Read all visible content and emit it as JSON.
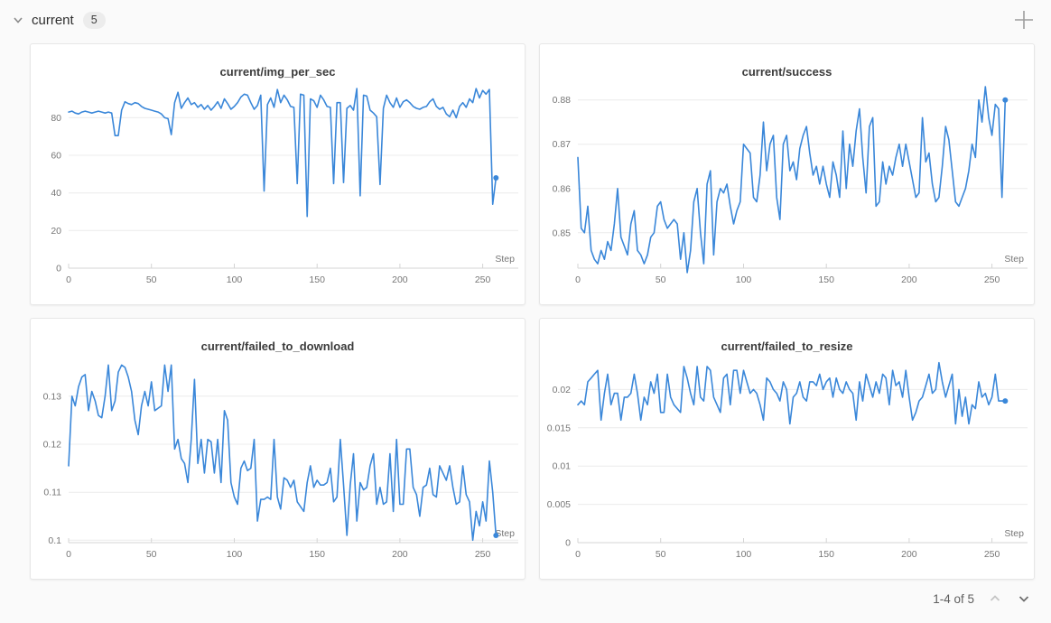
{
  "header": {
    "title": "current",
    "count": "5",
    "collapse_icon": "chevron-down-icon",
    "add_icon": "plus-icon"
  },
  "pagination": {
    "label": "1-4 of 5",
    "up_icon": "chevron-up-icon",
    "down_icon": "chevron-down-icon"
  },
  "colors": {
    "line": "#3a87d9",
    "grid": "#ececec",
    "axis": "#d4d4d4",
    "tick_text": "#767676",
    "panel_bg": "#ffffff",
    "page_bg": "#fafafa"
  },
  "chart_data": [
    {
      "type": "line",
      "title": "current/img_per_sec",
      "xlabel": "Step",
      "x_start": 0,
      "x_step": 2,
      "xticks": [
        0,
        50,
        100,
        150,
        200,
        250
      ],
      "xlim": [
        0,
        266
      ],
      "ylim": [
        0,
        96.5
      ],
      "yticks": [
        0,
        20,
        40,
        60,
        80
      ],
      "ytick_labels": [
        "0",
        "20",
        "40",
        "60",
        "80"
      ],
      "grid": true,
      "legend": "none",
      "endpoint_dot": true,
      "y": [
        83,
        83.5,
        82.5,
        82,
        83,
        83.5,
        83,
        82.5,
        83,
        83.5,
        83,
        82.5,
        83,
        82.5,
        70.5,
        70.5,
        84,
        88.5,
        87.5,
        87,
        88,
        87.5,
        86,
        85,
        84.5,
        84,
        83.5,
        83,
        82,
        80,
        79.5,
        71,
        88,
        93.5,
        85,
        88,
        90.5,
        87,
        88,
        85.5,
        87,
        84.5,
        86.5,
        84,
        86,
        88.5,
        85,
        90,
        87.5,
        84.5,
        86,
        88,
        91,
        92.5,
        92,
        88,
        84.5,
        86.5,
        92,
        41,
        87,
        90.5,
        85.5,
        95,
        88,
        92,
        89.5,
        86,
        85.5,
        45,
        92.5,
        92,
        27.5,
        90,
        89,
        85.5,
        92,
        89.5,
        86,
        85.5,
        45,
        88,
        88,
        45.5,
        85,
        86.5,
        84,
        95.5,
        38.5,
        92,
        91.5,
        84,
        82.5,
        80.5,
        44.5,
        85,
        92,
        88,
        85.5,
        90.5,
        85.5,
        88.5,
        89.5,
        88,
        86,
        85,
        84.5,
        85.5,
        86,
        88.5,
        90,
        86,
        84.5,
        85.5,
        82,
        80.5,
        84,
        80,
        86,
        88,
        85.5,
        90,
        88,
        95.5,
        90.5,
        94.5,
        92.5,
        95,
        34,
        48
      ]
    },
    {
      "type": "line",
      "title": "current/success",
      "xlabel": "Step",
      "x_start": 0,
      "x_step": 2,
      "xticks": [
        0,
        50,
        100,
        150,
        200,
        250
      ],
      "xlim": [
        0,
        266
      ],
      "ylim": [
        0.842,
        0.883
      ],
      "yticks": [
        0.85,
        0.86,
        0.87,
        0.88
      ],
      "ytick_labels": [
        "0.85",
        "0.86",
        "0.87",
        "0.88"
      ],
      "grid": true,
      "legend": "none",
      "endpoint_dot": true,
      "y": [
        0.867,
        0.851,
        0.85,
        0.856,
        0.846,
        0.844,
        0.843,
        0.846,
        0.844,
        0.848,
        0.846,
        0.852,
        0.86,
        0.849,
        0.847,
        0.845,
        0.852,
        0.855,
        0.846,
        0.845,
        0.843,
        0.845,
        0.849,
        0.85,
        0.856,
        0.857,
        0.853,
        0.851,
        0.852,
        0.853,
        0.852,
        0.844,
        0.85,
        0.841,
        0.846,
        0.857,
        0.86,
        0.85,
        0.843,
        0.861,
        0.864,
        0.845,
        0.857,
        0.86,
        0.859,
        0.861,
        0.856,
        0.852,
        0.855,
        0.857,
        0.87,
        0.869,
        0.868,
        0.858,
        0.857,
        0.863,
        0.875,
        0.864,
        0.87,
        0.872,
        0.858,
        0.853,
        0.87,
        0.872,
        0.864,
        0.866,
        0.862,
        0.869,
        0.872,
        0.874,
        0.868,
        0.863,
        0.865,
        0.861,
        0.865,
        0.861,
        0.858,
        0.866,
        0.863,
        0.858,
        0.873,
        0.86,
        0.87,
        0.865,
        0.873,
        0.878,
        0.867,
        0.859,
        0.874,
        0.876,
        0.856,
        0.857,
        0.866,
        0.861,
        0.865,
        0.863,
        0.867,
        0.87,
        0.865,
        0.87,
        0.866,
        0.862,
        0.858,
        0.859,
        0.876,
        0.866,
        0.868,
        0.861,
        0.857,
        0.858,
        0.865,
        0.874,
        0.871,
        0.864,
        0.857,
        0.856,
        0.858,
        0.86,
        0.864,
        0.87,
        0.867,
        0.88,
        0.875,
        0.883,
        0.876,
        0.872,
        0.879,
        0.878,
        0.858,
        0.88
      ]
    },
    {
      "type": "line",
      "title": "current/failed_to_download",
      "xlabel": "Step",
      "x_start": 0,
      "x_step": 2,
      "xticks": [
        0,
        50,
        100,
        150,
        200,
        250
      ],
      "xlim": [
        0,
        266
      ],
      "ylim": [
        0.0995,
        0.1373
      ],
      "yticks": [
        0.1,
        0.11,
        0.12,
        0.13
      ],
      "ytick_labels": [
        "0.1",
        "0.11",
        "0.12",
        "0.13"
      ],
      "grid": true,
      "legend": "none",
      "endpoint_dot": true,
      "y": [
        0.1155,
        0.13,
        0.128,
        0.132,
        0.134,
        0.1345,
        0.127,
        0.131,
        0.129,
        0.126,
        0.1255,
        0.13,
        0.1365,
        0.127,
        0.129,
        0.135,
        0.1365,
        0.136,
        0.134,
        0.131,
        0.125,
        0.122,
        0.128,
        0.131,
        0.128,
        0.133,
        0.127,
        0.1275,
        0.128,
        0.1365,
        0.131,
        0.1365,
        0.119,
        0.121,
        0.117,
        0.116,
        0.112,
        0.121,
        0.1335,
        0.116,
        0.121,
        0.114,
        0.121,
        0.1205,
        0.114,
        0.121,
        0.112,
        0.127,
        0.125,
        0.112,
        0.109,
        0.1075,
        0.115,
        0.1165,
        0.1145,
        0.115,
        0.121,
        0.104,
        0.1085,
        0.1085,
        0.109,
        0.1085,
        0.121,
        0.109,
        0.1065,
        0.113,
        0.1125,
        0.111,
        0.1125,
        0.108,
        0.107,
        0.106,
        0.112,
        0.1155,
        0.111,
        0.1125,
        0.1115,
        0.1115,
        0.112,
        0.115,
        0.108,
        0.109,
        0.121,
        0.1115,
        0.101,
        0.1115,
        0.118,
        0.104,
        0.112,
        0.1105,
        0.111,
        0.1155,
        0.118,
        0.1075,
        0.111,
        0.1075,
        0.108,
        0.118,
        0.106,
        0.121,
        0.1075,
        0.1075,
        0.119,
        0.119,
        0.111,
        0.1095,
        0.105,
        0.111,
        0.1115,
        0.115,
        0.1095,
        0.109,
        0.1155,
        0.114,
        0.1125,
        0.1155,
        0.111,
        0.1075,
        0.108,
        0.1155,
        0.1095,
        0.108,
        0.1,
        0.106,
        0.103,
        0.108,
        0.104,
        0.1165,
        0.11,
        0.101
      ]
    },
    {
      "type": "line",
      "title": "current/failed_to_resize",
      "xlabel": "Step",
      "x_start": 0,
      "x_step": 2,
      "xticks": [
        0,
        50,
        100,
        150,
        200,
        250
      ],
      "xlim": [
        0,
        266
      ],
      "ylim": [
        0,
        0.0237
      ],
      "yticks": [
        0,
        0.005,
        0.01,
        0.015,
        0.02
      ],
      "ytick_labels": [
        "0",
        "0.005",
        "0.01",
        "0.015",
        "0.02"
      ],
      "grid": true,
      "legend": "none",
      "endpoint_dot": true,
      "y": [
        0.018,
        0.0185,
        0.018,
        0.021,
        0.0215,
        0.022,
        0.0225,
        0.016,
        0.0195,
        0.022,
        0.018,
        0.0195,
        0.0195,
        0.016,
        0.019,
        0.019,
        0.0195,
        0.022,
        0.0195,
        0.016,
        0.019,
        0.018,
        0.021,
        0.0195,
        0.022,
        0.017,
        0.017,
        0.022,
        0.019,
        0.018,
        0.0175,
        0.017,
        0.023,
        0.0215,
        0.0195,
        0.018,
        0.023,
        0.019,
        0.0185,
        0.023,
        0.0225,
        0.019,
        0.018,
        0.017,
        0.0215,
        0.022,
        0.018,
        0.0225,
        0.0225,
        0.0195,
        0.0225,
        0.021,
        0.0195,
        0.02,
        0.0195,
        0.018,
        0.016,
        0.0215,
        0.021,
        0.02,
        0.0195,
        0.0185,
        0.021,
        0.02,
        0.0155,
        0.019,
        0.0195,
        0.021,
        0.019,
        0.0185,
        0.021,
        0.021,
        0.0205,
        0.022,
        0.02,
        0.021,
        0.0215,
        0.019,
        0.0215,
        0.02,
        0.0195,
        0.021,
        0.02,
        0.0195,
        0.016,
        0.021,
        0.0185,
        0.022,
        0.0205,
        0.019,
        0.021,
        0.0195,
        0.022,
        0.0215,
        0.018,
        0.0225,
        0.0205,
        0.021,
        0.019,
        0.0225,
        0.019,
        0.016,
        0.017,
        0.0185,
        0.019,
        0.0205,
        0.022,
        0.0195,
        0.02,
        0.0235,
        0.021,
        0.019,
        0.0205,
        0.022,
        0.0155,
        0.02,
        0.0165,
        0.019,
        0.0155,
        0.018,
        0.0175,
        0.021,
        0.019,
        0.0195,
        0.018,
        0.019,
        0.022,
        0.0185,
        0.0185,
        0.0185
      ]
    }
  ]
}
